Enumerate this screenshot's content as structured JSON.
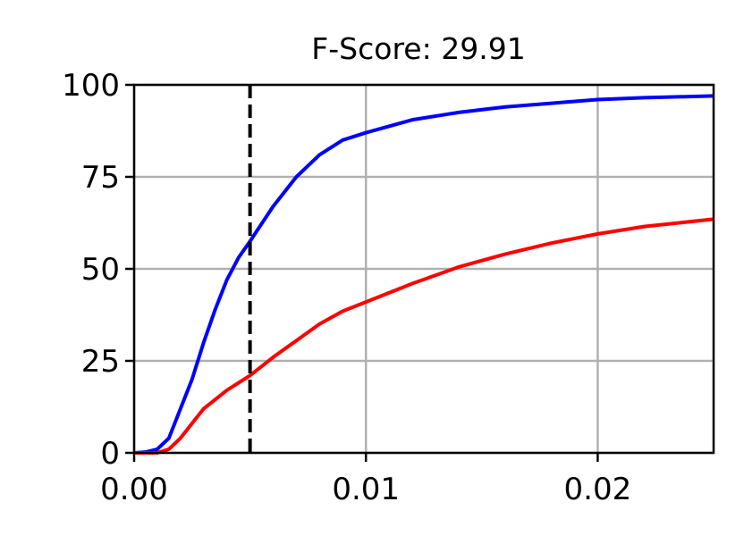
{
  "chart_data": {
    "type": "line",
    "title": "F-Score: 29.91",
    "x": [
      0,
      0.0005,
      0.001,
      0.0015,
      0.002,
      0.0025,
      0.003,
      0.0035,
      0.004,
      0.0045,
      0.005,
      0.006,
      0.007,
      0.008,
      0.009,
      0.01,
      0.012,
      0.014,
      0.016,
      0.018,
      0.02,
      0.022,
      0.025
    ],
    "series": [
      {
        "color": "#0000ff",
        "values": [
          0,
          0.2,
          1,
          4,
          12,
          20,
          30,
          39,
          47,
          53,
          57.5,
          67,
          75,
          81,
          85,
          87,
          90.5,
          92.5,
          94,
          95,
          96,
          96.5,
          97
        ]
      },
      {
        "color": "#ff0000",
        "values": [
          0,
          0,
          0,
          1,
          4,
          8,
          12,
          14.5,
          17,
          19,
          21,
          26,
          30.5,
          35,
          38.5,
          41,
          46,
          50.5,
          54,
          57,
          59.5,
          61.5,
          63.5
        ]
      }
    ],
    "xlim": [
      0,
      0.025
    ],
    "ylim": [
      0,
      100
    ],
    "xticks": [
      {
        "value": 0,
        "label": "0.00"
      },
      0.01,
      0.02
    ],
    "yticks": [
      0,
      25,
      50,
      75,
      100
    ],
    "grid": true,
    "vline": {
      "x": 0.005,
      "color": "#000000",
      "style": "dashed"
    }
  }
}
